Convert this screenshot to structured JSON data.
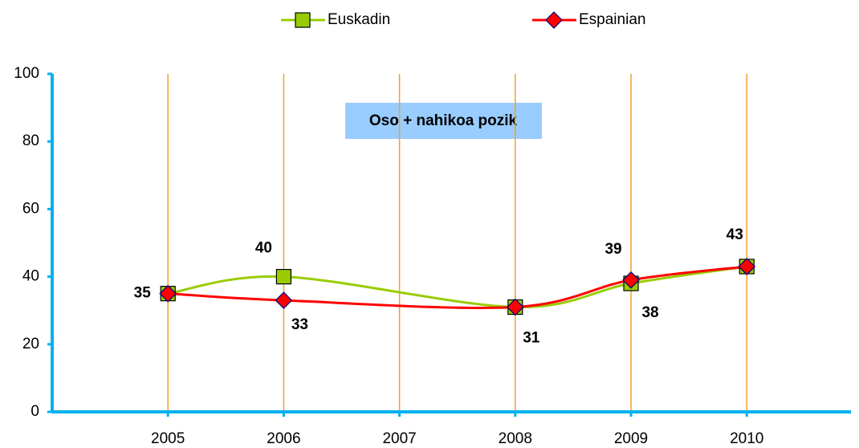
{
  "chart_data": {
    "type": "line",
    "annotation": "Oso + nahikoa pozik",
    "x": [
      2005,
      2006,
      2008,
      2009,
      2010
    ],
    "series": [
      {
        "name": "Euskadin",
        "color": "#99cc00",
        "marker": "square",
        "values": [
          35,
          40,
          31,
          38,
          43
        ],
        "value_labels": [
          "35",
          "40",
          "31",
          "38",
          "43"
        ]
      },
      {
        "name": "Espainian",
        "color": "#ff0000",
        "marker": "diamond",
        "values": [
          35,
          33,
          31,
          39,
          43
        ],
        "value_labels": [
          null,
          "33",
          null,
          "39",
          null
        ]
      }
    ],
    "xlim": [
      2004,
      2010.9
    ],
    "xticks": [
      2005,
      2006,
      2007,
      2008,
      2009,
      2010
    ],
    "ylim": [
      0,
      100
    ],
    "yticks": [
      0,
      20,
      40,
      60,
      80,
      100
    ],
    "grid": "x",
    "legend": "top"
  }
}
